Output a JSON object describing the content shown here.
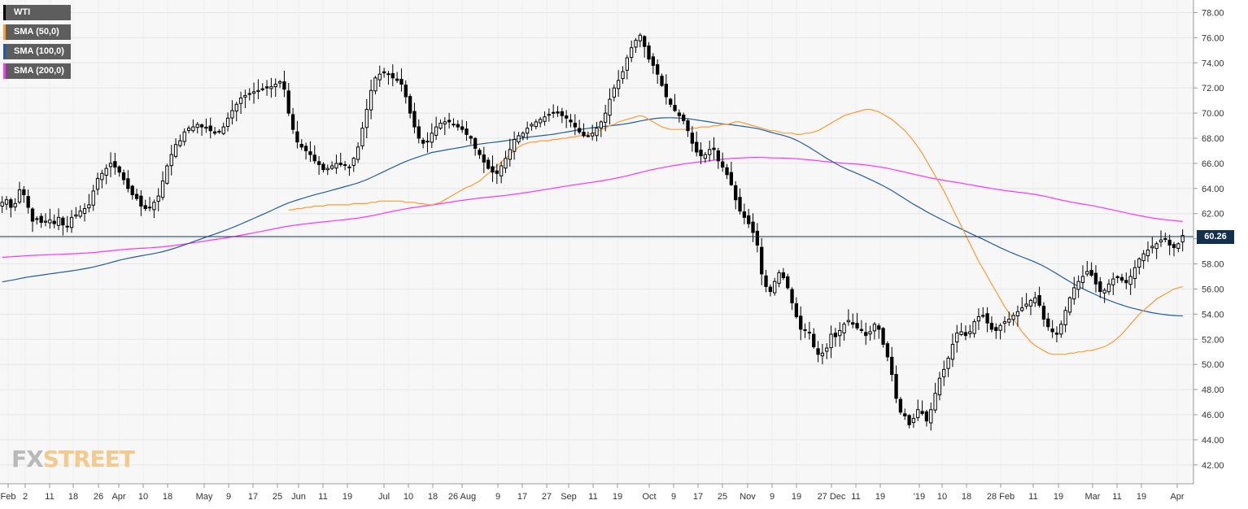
{
  "legend": [
    {
      "label": "WTI",
      "color": "#000000"
    },
    {
      "label": "SMA (50,0)",
      "color": "#ff9b2f"
    },
    {
      "label": "SMA (100,0)",
      "color": "#1f5da8"
    },
    {
      "label": "SMA (200,0)",
      "color": "#ff33ff"
    }
  ],
  "watermark": {
    "fx": "FX",
    "street": "STREET"
  },
  "last_price": "60.26",
  "chart_data": {
    "type": "candlestick",
    "ylim": [
      40.5,
      79
    ],
    "y_ticks": [
      "78.00",
      "76.00",
      "74.00",
      "72.00",
      "70.00",
      "68.00",
      "66.00",
      "64.00",
      "62.00",
      "60.00",
      "58.00",
      "56.00",
      "54.00",
      "52.00",
      "50.00",
      "48.00",
      "46.00",
      "44.00",
      "42.00"
    ],
    "x_ticks": [
      "Feb",
      "2",
      "11",
      "18",
      "26",
      "Apr",
      "10",
      "18",
      "May",
      "9",
      "17",
      "25",
      "Jun",
      "11",
      "19",
      "Jul",
      "10",
      "18",
      "26 Aug",
      "9",
      "17",
      "27",
      "Sep",
      "11",
      "19",
      "Oct",
      "9",
      "17",
      "25",
      "Nov",
      "9",
      "19",
      "27 Dec",
      "11",
      "19",
      "'19",
      "10",
      "18",
      "28 Feb",
      "11",
      "19",
      "Mar",
      "11",
      "19",
      "Apr"
    ],
    "current_price_line": 60.26,
    "closes": [
      62.9,
      63.1,
      62.5,
      62.8,
      63.9,
      63.5,
      62.5,
      61.4,
      61.6,
      61.3,
      61.4,
      61.5,
      61.2,
      61.7,
      61.1,
      61.0,
      61.7,
      61.9,
      62.2,
      62.4,
      62.7,
      63.8,
      64.8,
      65.2,
      65.6,
      66.0,
      65.7,
      65.3,
      64.7,
      64.0,
      63.5,
      63.2,
      62.6,
      62.4,
      62.5,
      62.9,
      63.4,
      64.6,
      65.8,
      66.7,
      67.5,
      67.8,
      68.5,
      68.8,
      68.9,
      69.1,
      68.9,
      68.8,
      68.6,
      68.4,
      68.5,
      68.9,
      69.6,
      70.2,
      70.7,
      71.2,
      71.4,
      71.5,
      71.7,
      71.8,
      71.9,
      72.0,
      72.1,
      72.3,
      72.5,
      71.9,
      70.0,
      68.7,
      67.7,
      67.3,
      67.0,
      66.7,
      66.2,
      65.9,
      65.5,
      65.6,
      65.8,
      66.0,
      65.9,
      65.9,
      65.7,
      66.4,
      67.3,
      68.8,
      70.3,
      71.8,
      72.8,
      73.1,
      73.2,
      73.1,
      72.8,
      72.6,
      72.3,
      71.3,
      70.0,
      68.9,
      68.0,
      67.6,
      67.7,
      68.4,
      68.9,
      69.2,
      69.3,
      69.3,
      69.1,
      68.9,
      68.7,
      68.3,
      68.0,
      67.2,
      66.7,
      66.1,
      65.6,
      65.3,
      65.2,
      65.8,
      66.4,
      67.1,
      67.9,
      68.2,
      68.4,
      68.8,
      69.1,
      69.3,
      69.5,
      69.7,
      69.9,
      70.0,
      70.0,
      69.8,
      69.6,
      69.3,
      68.9,
      68.5,
      68.2,
      68.2,
      68.4,
      68.8,
      69.3,
      70.0,
      71.1,
      72.0,
      72.6,
      73.3,
      74.4,
      75.2,
      75.8,
      76.2,
      75.3,
      74.3,
      73.8,
      73.1,
      72.2,
      71.3,
      70.7,
      70.2,
      69.8,
      69.4,
      68.6,
      67.6,
      66.9,
      66.6,
      66.7,
      67.1,
      67.1,
      66.2,
      65.7,
      65.1,
      64.3,
      63.1,
      62.2,
      61.7,
      61.2,
      60.5,
      59.5,
      57.2,
      56.2,
      55.8,
      56.6,
      57.3,
      56.9,
      56.1,
      54.9,
      53.8,
      52.8,
      52.7,
      52.5,
      51.4,
      50.8,
      50.9,
      51.3,
      52.4,
      52.2,
      52.7,
      53.2,
      53.5,
      53.2,
      52.9,
      52.7,
      52.3,
      52.6,
      53.2,
      52.8,
      51.6,
      50.6,
      49.2,
      47.3,
      46.2,
      45.9,
      45.2,
      45.7,
      46.4,
      46.1,
      45.5,
      46.4,
      47.7,
      48.9,
      49.6,
      50.5,
      51.6,
      52.5,
      52.6,
      52.3,
      52.6,
      53.4,
      53.8,
      53.9,
      53.3,
      52.8,
      52.7,
      53.1,
      53.4,
      53.6,
      53.9,
      54.2,
      54.5,
      54.8,
      55.1,
      55.3,
      54.7,
      53.6,
      53.0,
      52.6,
      52.4,
      53.2,
      54.3,
      55.3,
      56.1,
      56.6,
      57.0,
      57.4,
      57.1,
      56.4,
      55.8,
      55.9,
      56.4,
      56.8,
      56.9,
      56.7,
      56.5,
      57.0,
      57.7,
      58.4,
      58.8,
      59.1,
      59.4,
      59.6,
      59.9,
      60.0,
      59.5,
      59.3,
      59.6,
      60.26
    ],
    "sma50": [
      62.3,
      62.3,
      62.4,
      62.4,
      62.5,
      62.5,
      62.6,
      62.6,
      62.6,
      62.7,
      62.7,
      62.7,
      62.7,
      62.7,
      62.7,
      62.8,
      62.8,
      62.8,
      62.8,
      62.9,
      62.9,
      63.0,
      63.0,
      63.0,
      63.0,
      63.0,
      63.0,
      62.9,
      62.9,
      62.9,
      62.8,
      62.8,
      62.7,
      62.7,
      62.8,
      62.9,
      63.1,
      63.3,
      63.5,
      63.7,
      63.9,
      64.1,
      64.2,
      64.4,
      64.6,
      64.9,
      65.2,
      65.5,
      65.8,
      66.1,
      66.4,
      66.7,
      67.0,
      67.3,
      67.5,
      67.6,
      67.7,
      67.7,
      67.8,
      67.8,
      67.8,
      67.9,
      67.9,
      68.0,
      68.0,
      68.1,
      68.1,
      68.2,
      68.2,
      68.3,
      68.4,
      68.5,
      68.7,
      68.8,
      69.0,
      69.1,
      69.3,
      69.4,
      69.5,
      69.6,
      69.7,
      69.8,
      69.7,
      69.5,
      69.3,
      69.1,
      68.9,
      68.8,
      68.7,
      68.7,
      68.7,
      68.7,
      68.7,
      68.8,
      68.8,
      68.9,
      68.9,
      68.9,
      69.0,
      69.0,
      69.1,
      69.1,
      69.2,
      69.3,
      69.3,
      69.2,
      69.1,
      69.0,
      68.9,
      68.8,
      68.7,
      68.6,
      68.6,
      68.5,
      68.4,
      68.4,
      68.4,
      68.3,
      68.3,
      68.4,
      68.4,
      68.5,
      68.6,
      68.8,
      69.0,
      69.2,
      69.4,
      69.6,
      69.8,
      69.9,
      70.0,
      70.1,
      70.2,
      70.3,
      70.3,
      70.2,
      70.1,
      69.9,
      69.7,
      69.5,
      69.2,
      68.9,
      68.6,
      68.2,
      67.8,
      67.3,
      66.8,
      66.2,
      65.6,
      65.0,
      64.4,
      63.8,
      63.1,
      62.4,
      61.7,
      61.0,
      60.3,
      59.6,
      58.9,
      58.2,
      57.6,
      57.0,
      56.4,
      55.8,
      55.2,
      54.6,
      54.1,
      53.6,
      53.1,
      52.6,
      52.2,
      51.8,
      51.5,
      51.3,
      51.1,
      50.9,
      50.8,
      50.8,
      50.8,
      50.8,
      50.9,
      50.9,
      51.0,
      51.0,
      51.1,
      51.1,
      51.2,
      51.3,
      51.4,
      51.6,
      51.8,
      52.1,
      52.4,
      52.8,
      53.2,
      53.6,
      54.0,
      54.3,
      54.6,
      54.9,
      55.2,
      55.4,
      55.6,
      55.8,
      56.0,
      56.1,
      56.2
    ]
  }
}
